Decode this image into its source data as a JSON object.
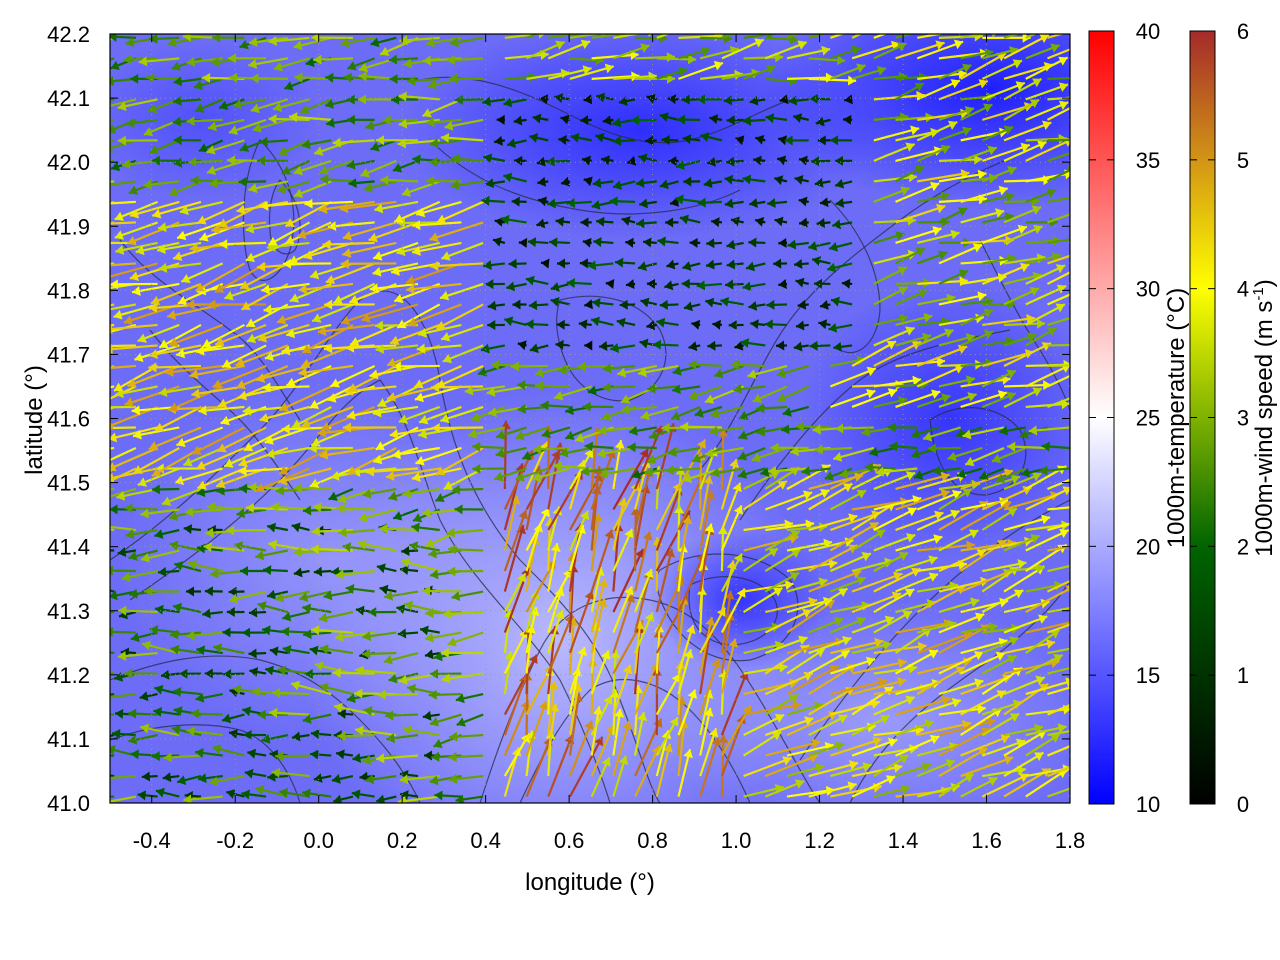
{
  "chart_data": {
    "type": "heatmap",
    "overlays": [
      "wind-vector-arrows",
      "elevation-contours"
    ],
    "xlabel": "longitude (°)",
    "ylabel": "latitude (°)",
    "xlim": [
      -0.5,
      1.8
    ],
    "ylim": [
      41.0,
      42.2
    ],
    "xticks": [
      "-0.4",
      "-0.2",
      "0.0",
      "0.2",
      "0.4",
      "0.6",
      "0.8",
      "1.0",
      "1.2",
      "1.4",
      "1.6",
      "1.8"
    ],
    "yticks": [
      "41.0",
      "41.1",
      "41.2",
      "41.3",
      "41.4",
      "41.5",
      "41.6",
      "41.7",
      "41.8",
      "41.9",
      "42.0",
      "42.1",
      "42.2"
    ],
    "grid": true,
    "temperature_colorbar": {
      "label": "1000m-temperature (°C)",
      "range": [
        10,
        40
      ],
      "ticks": [
        "10",
        "15",
        "20",
        "25",
        "30",
        "35",
        "40"
      ],
      "colors": [
        "#0000ff",
        "#ffffff",
        "#ff0000"
      ]
    },
    "wind_colorbar": {
      "label_main": "1000m-wind speed (m s",
      "label_sup": "-1",
      "label_end": ")",
      "range": [
        0,
        6
      ],
      "ticks": [
        "0",
        "1",
        "2",
        "3",
        "4",
        "5",
        "6"
      ],
      "colors": [
        "#000000",
        "#006400",
        "#ffff00",
        "#a52a2a"
      ]
    },
    "temperature_field_description": "mostly 14-18 °C; warmest (~19-20 °C) near lon 0.4-0.8, lat 41.0-41.6; coolest (~11-13 °C) in upper right near lon 1.4-1.8, lat 41.9-42.2",
    "wind_regimes": [
      {
        "lon": [
          -0.5,
          0.4
        ],
        "lat": [
          41.5,
          41.95
        ],
        "dir_deg": 195,
        "speed": [
          3.5,
          5.0
        ]
      },
      {
        "lon": [
          -0.5,
          0.3
        ],
        "lat": [
          41.0,
          41.45
        ],
        "dir_deg": 180,
        "speed": [
          1.0,
          3.5
        ]
      },
      {
        "lon": [
          0.4,
          1.3
        ],
        "lat": [
          41.7,
          42.1
        ],
        "dir_deg": 180,
        "speed": [
          0.3,
          2.0
        ]
      },
      {
        "lon": [
          0.4,
          1.2
        ],
        "lat": [
          42.1,
          42.2
        ],
        "dir_deg": 10,
        "speed": [
          2.5,
          4.0
        ]
      },
      {
        "lon": [
          0.4,
          1.0
        ],
        "lat": [
          41.0,
          41.5
        ],
        "dir_deg": 75,
        "speed": [
          3.5,
          6.0
        ]
      },
      {
        "lon": [
          1.0,
          1.8
        ],
        "lat": [
          41.0,
          41.5
        ],
        "dir_deg": 20,
        "speed": [
          3.0,
          5.0
        ]
      },
      {
        "lon": [
          1.2,
          1.8
        ],
        "lat": [
          41.6,
          42.2
        ],
        "dir_deg": 15,
        "speed": [
          2.5,
          4.5
        ]
      }
    ]
  }
}
